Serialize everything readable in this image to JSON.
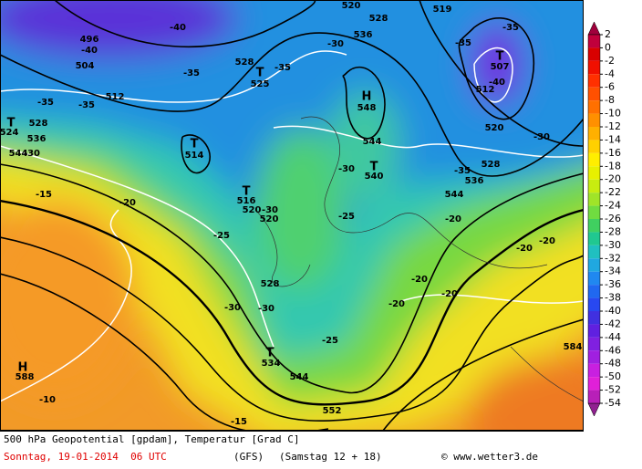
{
  "colorbar": {
    "ticks": [
      2,
      0,
      -2,
      -4,
      -6,
      -8,
      -10,
      -12,
      -14,
      -16,
      -18,
      -20,
      -22,
      -24,
      -26,
      -28,
      -30,
      -32,
      -34,
      -36,
      -38,
      -40,
      -42,
      -44,
      -46,
      -48,
      -50,
      -52,
      -54
    ],
    "colors": [
      "#c0003c",
      "#d80000",
      "#f01000",
      "#ff3000",
      "#ff5000",
      "#ff7000",
      "#ff9000",
      "#ffb000",
      "#ffd000",
      "#ffee00",
      "#e8f000",
      "#c8ec10",
      "#a0e428",
      "#70dc40",
      "#40d060",
      "#20c890",
      "#20c0c0",
      "#20a8e0",
      "#2088f0",
      "#2068f0",
      "#2848f0",
      "#4030e0",
      "#6020e0",
      "#8020e0",
      "#a020e0",
      "#c820e0",
      "#e020d8",
      "#b820b8"
    ],
    "top_color": "#a0003c",
    "bottom_color": "#902090"
  },
  "map_labels": [
    "-40",
    "496",
    "-40",
    "504",
    "512",
    "-35",
    "528",
    "T",
    "525",
    "-35",
    "-30",
    "536",
    "520",
    "528",
    "519",
    "-35",
    "-35",
    "T",
    "507",
    "512",
    "-40",
    "H",
    "548",
    "544",
    "520",
    "-30",
    "T",
    "540",
    "-35",
    "536",
    "528",
    "544",
    "-30",
    "T",
    "524",
    "528",
    "536",
    "544",
    "-30",
    "-35",
    "-35",
    "T",
    "514",
    "-15",
    "-20",
    "T",
    "516",
    "520",
    "-30",
    "520",
    "-25",
    "-25",
    "-20",
    "-20",
    "-20",
    "528",
    "-20",
    "-20",
    "-20",
    "-30",
    "-30",
    "-25",
    "T",
    "534",
    "544",
    "H",
    "588",
    "-10",
    "552",
    "584",
    "-15"
  ],
  "footer": {
    "caption": "500 hPa Geopotential [gpdam], Temperatur [Grad C]",
    "date": "Sonntag, 19-01-2014  06 UTC",
    "model": "(GFS)",
    "run": "(Samstag 12 + 18)",
    "credit": "© www.wetter3.de"
  }
}
